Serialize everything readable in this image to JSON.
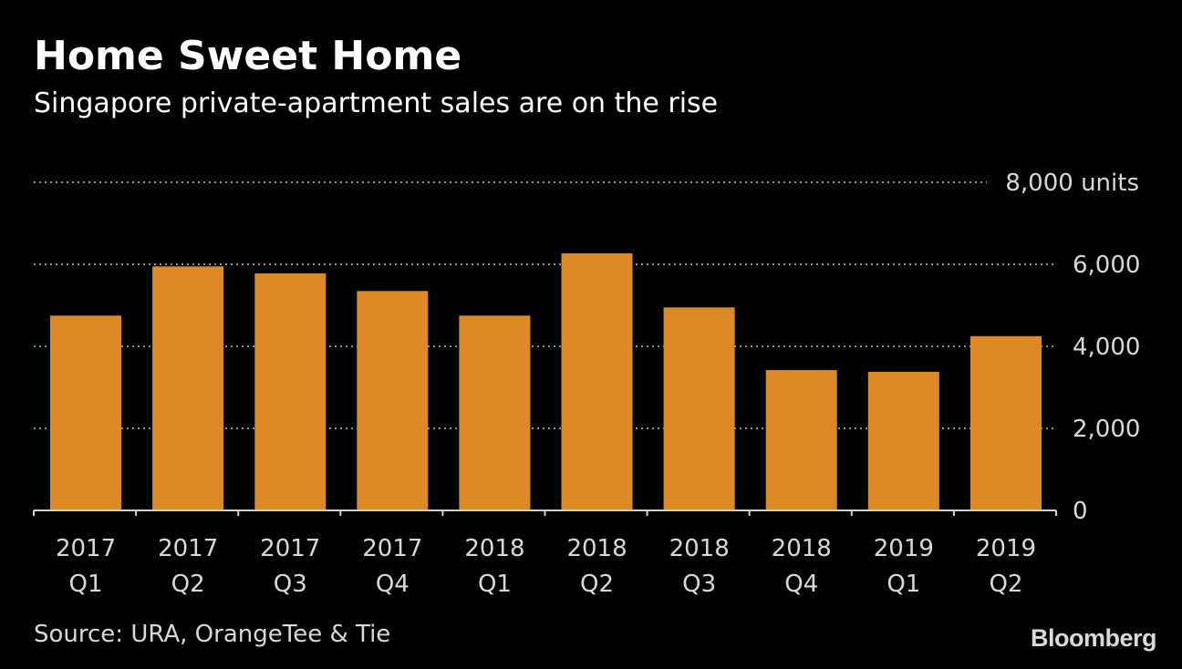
{
  "title": "Home Sweet Home",
  "subtitle": "Singapore private-apartment sales are on the rise",
  "source": "Source: URA, OrangeTee & Tie",
  "logo": "Bloomberg",
  "colors": {
    "background": "#000000",
    "bar": "#DD8A25",
    "grid": "#8c8c8c",
    "axis": "#d0d0d0",
    "text": "#ffffff",
    "muted_text": "#d8d8d8"
  },
  "chart_data": {
    "type": "bar",
    "title": "Home Sweet Home",
    "subtitle": "Singapore private-apartment sales are on the rise",
    "categories": [
      [
        "2017",
        "Q1"
      ],
      [
        "2017",
        "Q2"
      ],
      [
        "2017",
        "Q3"
      ],
      [
        "2017",
        "Q4"
      ],
      [
        "2018",
        "Q1"
      ],
      [
        "2018",
        "Q2"
      ],
      [
        "2018",
        "Q3"
      ],
      [
        "2018",
        "Q4"
      ],
      [
        "2019",
        "Q1"
      ],
      [
        "2019",
        "Q2"
      ]
    ],
    "values": [
      4750,
      5950,
      5780,
      5350,
      4750,
      6270,
      4950,
      3420,
      3380,
      4250
    ],
    "ylim": [
      0,
      8000
    ],
    "yticks": [
      0,
      2000,
      4000,
      6000,
      8000
    ],
    "ytick_labels": [
      "0",
      "2,000",
      "4,000",
      "6,000",
      "8,000 units"
    ],
    "xlabel": "",
    "ylabel": "",
    "grid": true,
    "grid_style": "dotted",
    "axis_position": "right"
  }
}
